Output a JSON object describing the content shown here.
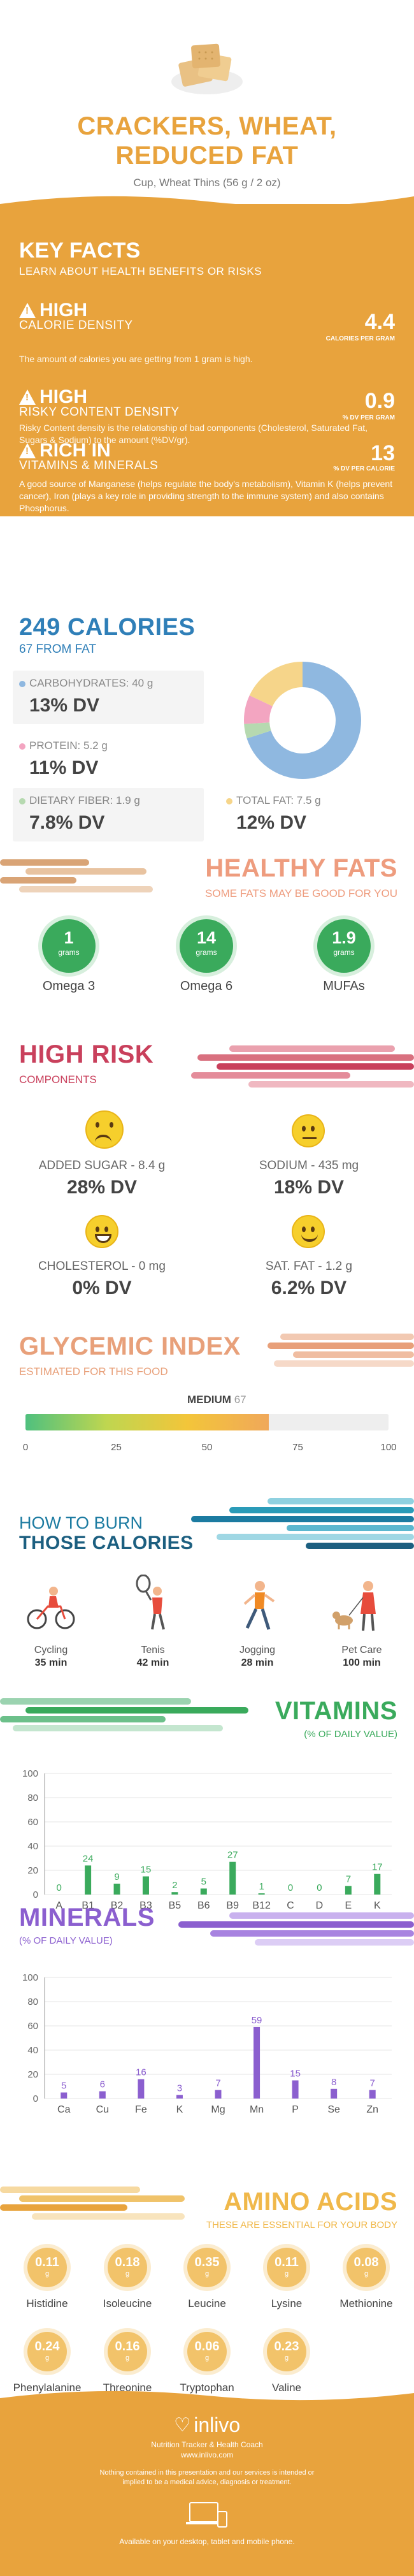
{
  "header": {
    "title_line1": "CRACKERS, WHEAT,",
    "title_line2": "REDUCED FAT",
    "serving": "Cup, Wheat Thins (56 g / 2 oz)"
  },
  "key_facts": {
    "title": "KEY FACTS",
    "subtitle": "LEARN ABOUT HEALTH BENEFITS OR RISKS",
    "rows": [
      {
        "level": "HIGH",
        "label": "CALORIE DENSITY",
        "value": "4.4",
        "unit": "CALORIES PER GRAM",
        "desc": "The amount of calories you are getting from 1 gram is high."
      },
      {
        "level": "HIGH",
        "label": "RISKY CONTENT DENSITY",
        "value": "0.9",
        "unit": "% DV PER GRAM",
        "desc": "Risky Content density is the relationship of bad components (Cholesterol, Saturated Fat, Sugars & Sodium) to the amount (%DV/gr)."
      },
      {
        "level": "RICH IN",
        "label": "VITAMINS & MINERALS",
        "value": "13",
        "unit": "% DV PER CALORIE",
        "desc": "A good source of Manganese (helps regulate the body's metabolism), Vitamin K (helps prevent cancer), Iron (plays a key role in providing strength to the immune system) and also contains Phosphorus."
      }
    ]
  },
  "calories": {
    "title": "249 CALORIES",
    "from_fat": "67 FROM FAT",
    "carb_label": "CARBOHYDRATES: 40 g",
    "carb_dv": "13% DV",
    "protein_label": "PROTEIN: 5.2 g",
    "protein_dv": "11% DV",
    "fiber_label": "DIETARY FIBER: 1.9 g",
    "fiber_dv": "7.8% DV",
    "fat_label": "TOTAL FAT: 7.5 g",
    "fat_dv": "12% DV",
    "donut": [
      {
        "name": "carbohydrates",
        "value": 70,
        "color": "#8fb8e0"
      },
      {
        "name": "fiber",
        "value": 4,
        "color": "#b6d9b0"
      },
      {
        "name": "protein",
        "value": 8,
        "color": "#f3a5c1"
      },
      {
        "name": "fat",
        "value": 18,
        "color": "#f6d58a"
      }
    ],
    "colors": {
      "carb": "#8fb8e0",
      "protein": "#f3a5c1",
      "fiber": "#b6d9b0",
      "fat": "#f6d58a"
    }
  },
  "healthy_fats": {
    "title": "HEALTHY FATS",
    "subtitle": "SOME FATS MAY BE GOOD FOR YOU",
    "unit": "grams",
    "items": [
      {
        "value": "1",
        "name": "Omega 3"
      },
      {
        "value": "14",
        "name": "Omega 6"
      },
      {
        "value": "1.9",
        "name": "MUFAs"
      }
    ]
  },
  "high_risk": {
    "title": "HIGH RISK",
    "subtitle": "COMPONENTS",
    "items": [
      {
        "label": "ADDED SUGAR - 8.4 g",
        "dv": "28% DV"
      },
      {
        "label": "SODIUM - 435 mg",
        "dv": "18% DV"
      },
      {
        "label": "CHOLESTEROL - 0 mg",
        "dv": "0% DV"
      },
      {
        "label": "SAT. FAT - 1.2 g",
        "dv": "6.2% DV"
      }
    ]
  },
  "glycemic": {
    "title": "GLYCEMIC INDEX",
    "subtitle": "ESTIMATED FOR THIS FOOD",
    "level": "MEDIUM",
    "value": 67,
    "value_text": "67",
    "ticks": [
      "0",
      "25",
      "50",
      "75",
      "100"
    ]
  },
  "burn": {
    "title1": "HOW TO BURN",
    "title2": "THOSE CALORIES",
    "items": [
      {
        "name": "Cycling",
        "time": "35 min"
      },
      {
        "name": "Tenis",
        "time": "42 min"
      },
      {
        "name": "Jogging",
        "time": "28 min"
      },
      {
        "name": "Pet Care",
        "time": "100 min"
      }
    ]
  },
  "vitamins": {
    "title": "VITAMINS",
    "subtitle": "(% OF DAILY VALUE)",
    "color": "#3aaa5c",
    "chart_data": {
      "type": "bar",
      "categories": [
        "A",
        "B1",
        "B2",
        "B3",
        "B5",
        "B6",
        "B9",
        "B12",
        "C",
        "D",
        "E",
        "K"
      ],
      "values": [
        0,
        24,
        9,
        15,
        2,
        5,
        27,
        1,
        0,
        0,
        7,
        17
      ],
      "ylim": [
        0,
        100
      ],
      "yticks": [
        "0",
        "20",
        "40",
        "60",
        "80",
        "100"
      ]
    }
  },
  "minerals": {
    "title": "MINERALS",
    "subtitle": "(% OF DAILY VALUE)",
    "color": "#8b5fcf",
    "chart_data": {
      "type": "bar",
      "categories": [
        "Ca",
        "Cu",
        "Fe",
        "K",
        "Mg",
        "Mn",
        "P",
        "Se",
        "Zn"
      ],
      "values": [
        5,
        6,
        16,
        3,
        7,
        59,
        15,
        8,
        7
      ],
      "ylim": [
        0,
        100
      ],
      "yticks": [
        "0",
        "20",
        "40",
        "60",
        "80",
        "100"
      ]
    }
  },
  "amino": {
    "title": "AMINO ACIDS",
    "subtitle": "THESE ARE ESSENTIAL FOR YOUR BODY",
    "unit": "g",
    "row1": [
      {
        "value": "0.11",
        "name": "Histidine"
      },
      {
        "value": "0.18",
        "name": "Isoleucine"
      },
      {
        "value": "0.35",
        "name": "Leucine"
      },
      {
        "value": "0.11",
        "name": "Lysine"
      },
      {
        "value": "0.08",
        "name": "Methionine"
      }
    ],
    "row2": [
      {
        "value": "0.24",
        "name": "Phenylalanine"
      },
      {
        "value": "0.16",
        "name": "Threonine"
      },
      {
        "value": "0.06",
        "name": "Tryptophan"
      },
      {
        "value": "0.23",
        "name": "Valine"
      }
    ]
  },
  "footer": {
    "brand": "inlivo",
    "tagline": "Nutrition Tracker & Health Coach",
    "url": "www.inlivo.com",
    "disclaimer": "Nothing contained in this presentation and our services is intended or implied to be a medical advice, diagnosis or treatment.",
    "available": "Available on your desktop, tablet and mobile phone."
  }
}
